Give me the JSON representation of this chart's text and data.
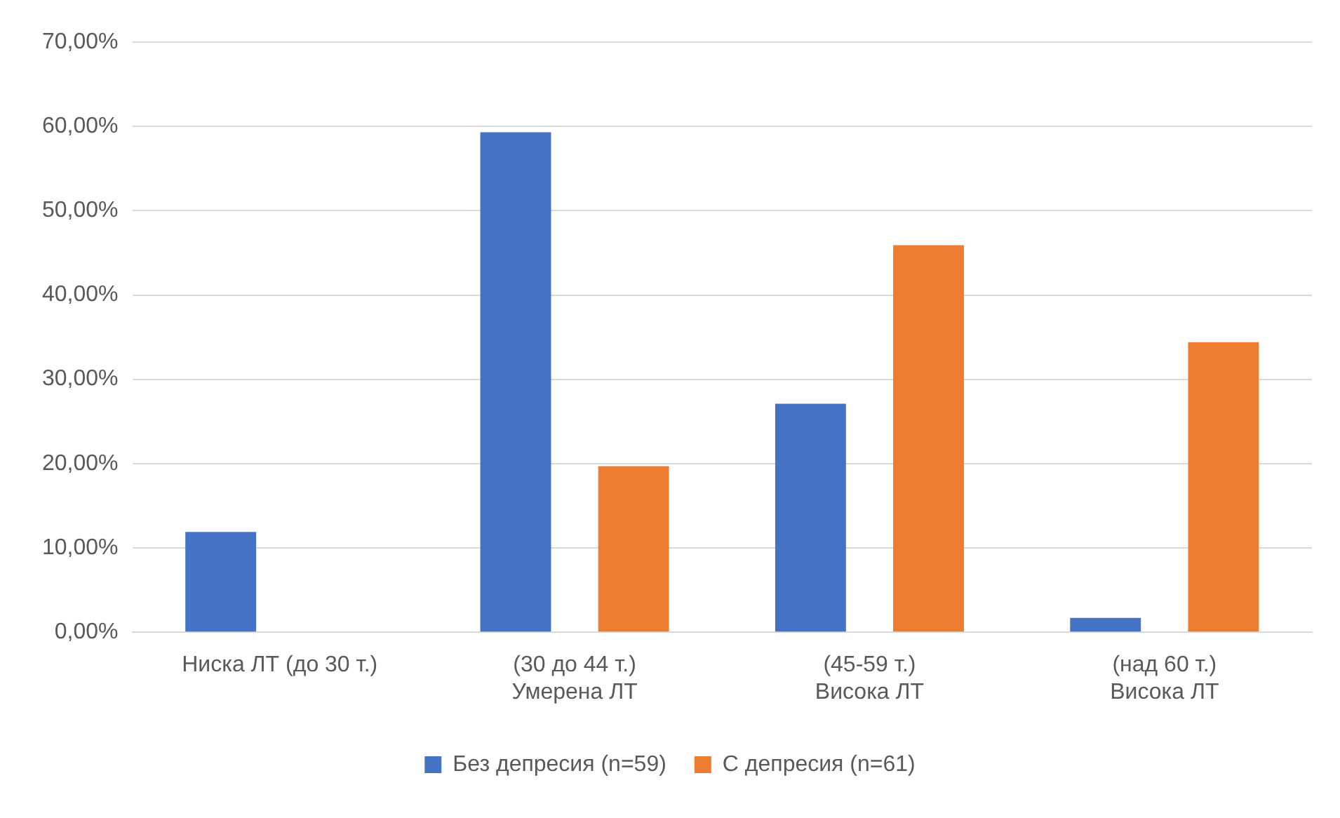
{
  "chart_data": {
    "type": "bar",
    "categories": [
      "Ниска ЛТ (до 30 т.)",
      "(30 до 44 т.)\nУмерена ЛТ",
      "(45-59 т.)\nВисока ЛТ",
      "(над 60 т.)\nВисока ЛТ"
    ],
    "series": [
      {
        "name": "Без депресия (n=59)",
        "color": "#4472c4",
        "values": [
          11.9,
          59.3,
          27.1,
          1.7
        ]
      },
      {
        "name": "С депресия (n=61)",
        "color": "#ed7d31",
        "values": [
          0,
          19.7,
          45.9,
          34.4
        ]
      }
    ],
    "ylim": [
      0,
      70
    ],
    "yticks": [
      {
        "value": 0,
        "label": "0,00%"
      },
      {
        "value": 10,
        "label": "10,00%"
      },
      {
        "value": 20,
        "label": "20,00%"
      },
      {
        "value": 30,
        "label": "30,00%"
      },
      {
        "value": 40,
        "label": "40,00%"
      },
      {
        "value": 50,
        "label": "50,00%"
      },
      {
        "value": 60,
        "label": "60,00%"
      },
      {
        "value": 70,
        "label": "70,00%"
      }
    ],
    "grid": "y",
    "legend": "bottom"
  }
}
